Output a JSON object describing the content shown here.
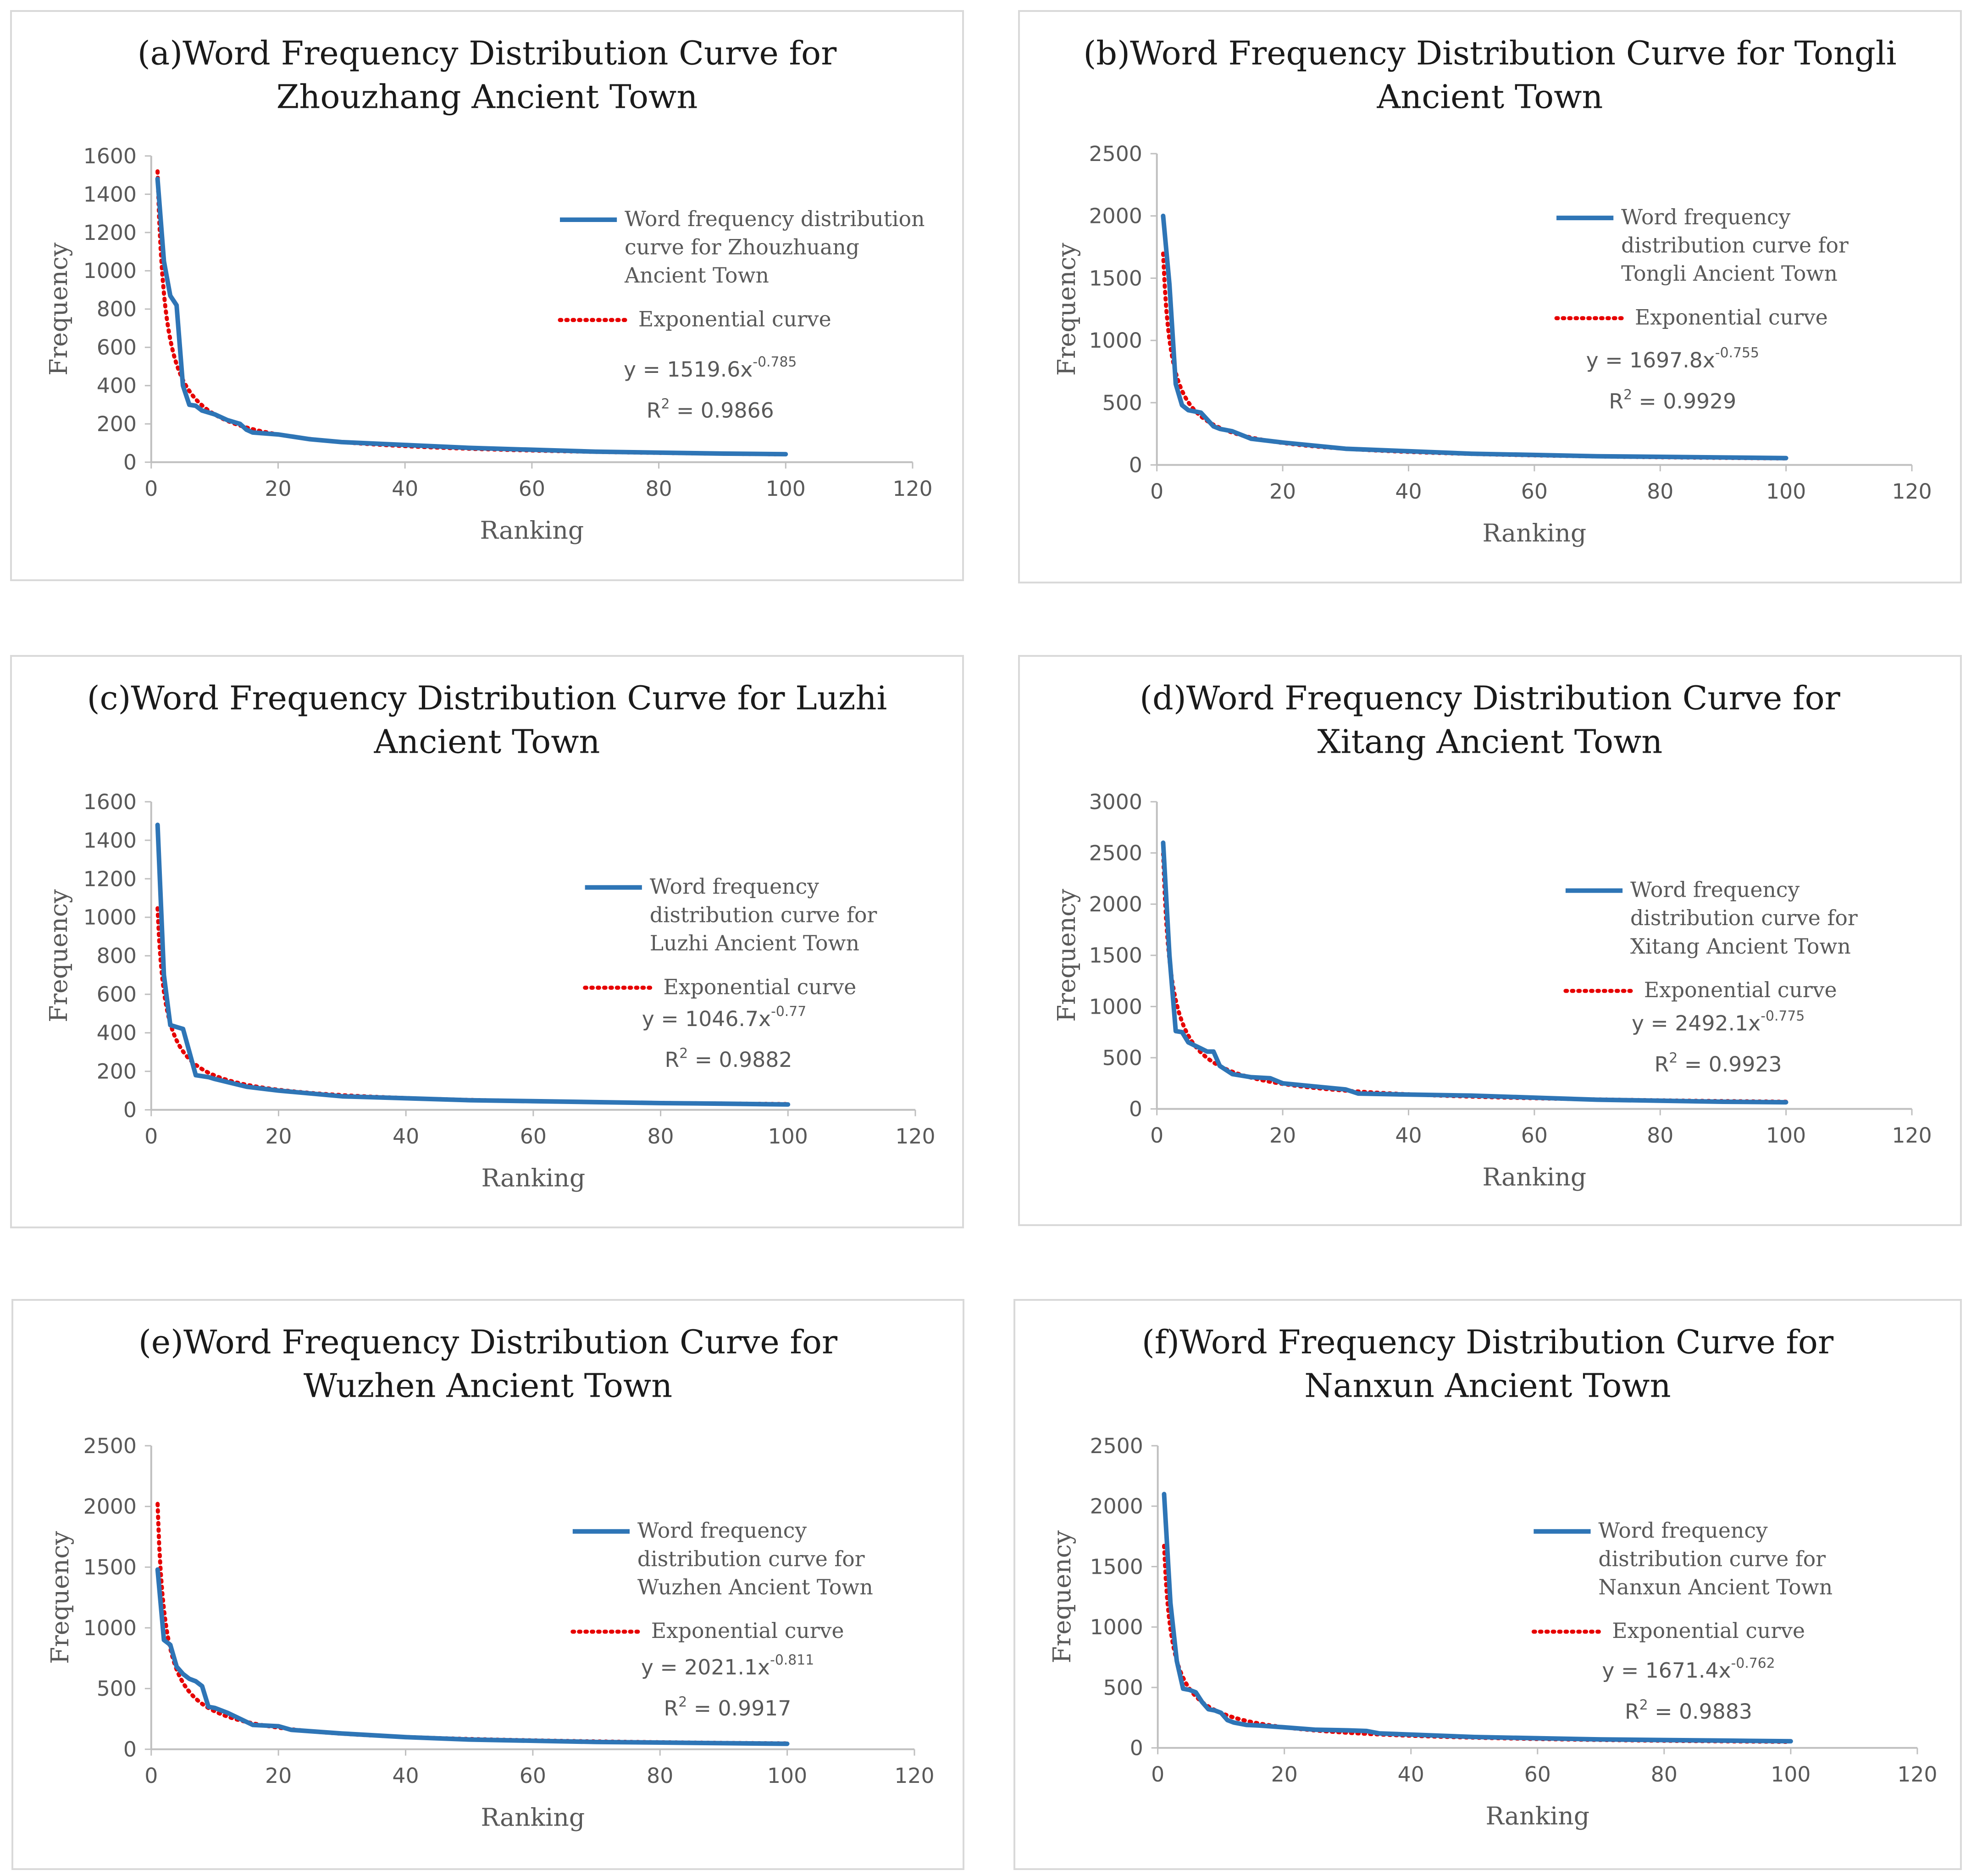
{
  "colors": {
    "series": "#2e75b6",
    "fit": "#e60000",
    "axis": "#bfbfbf",
    "border": "#d9d9d9"
  },
  "common": {
    "xlabel": "Ranking",
    "ylabel": "Frequency",
    "fit_legend": "Exponential curve",
    "xticks": [
      "0",
      "20",
      "40",
      "60",
      "80",
      "100",
      "120"
    ]
  },
  "chart_data": [
    {
      "type": "line",
      "title_lines": [
        "(a)Word Frequency Distribution Curve for",
        "Zhouzhang Ancient Town"
      ],
      "xlabel": "Ranking",
      "ylabel": "Frequency",
      "xlim": [
        0,
        120
      ],
      "ylim": [
        0,
        1600
      ],
      "yticks": [
        "0",
        "200",
        "400",
        "600",
        "800",
        "1000",
        "1200",
        "1400",
        "1600"
      ],
      "legend_lines": [
        "Word frequency distribution",
        "curve for Zhouzhuang",
        "Ancient Town"
      ],
      "series": [
        {
          "name": "Word frequency distribution curve for Zhouzhuang Ancient Town",
          "x": [
            1,
            2,
            3,
            4,
            5,
            6,
            7,
            8,
            9,
            10,
            12,
            14,
            15,
            16,
            18,
            20,
            25,
            30,
            40,
            50,
            60,
            70,
            80,
            90,
            100
          ],
          "y": [
            1480,
            1050,
            870,
            820,
            400,
            300,
            295,
            270,
            260,
            250,
            220,
            200,
            170,
            155,
            150,
            145,
            120,
            105,
            90,
            75,
            65,
            55,
            50,
            45,
            42
          ]
        }
      ],
      "fit": {
        "name": "Exponential curve",
        "a": 1519.6,
        "b": -0.785
      },
      "equation": {
        "main": "y = 1519.6x",
        "exponent": "-0.785",
        "r2_prefix": "R",
        "r2_sup": "2",
        "r2_value": " = 0.9866"
      }
    },
    {
      "type": "line",
      "title_lines": [
        "(b)Word Frequency Distribution Curve for Tongli",
        "Ancient Town"
      ],
      "xlabel": "Ranking",
      "ylabel": "Frequency",
      "xlim": [
        0,
        120
      ],
      "ylim": [
        0,
        2500
      ],
      "yticks": [
        "0",
        "500",
        "1000",
        "1500",
        "2000",
        "2500"
      ],
      "legend_lines": [
        "Word frequency",
        "distribution curve for",
        "Tongli Ancient Town"
      ],
      "series": [
        {
          "name": "Word frequency distribution curve for Tongli Ancient Town",
          "x": [
            1,
            2,
            3,
            4,
            5,
            7,
            9,
            10,
            12,
            15,
            20,
            30,
            40,
            50,
            60,
            70,
            80,
            90,
            100
          ],
          "y": [
            2000,
            1450,
            650,
            480,
            440,
            420,
            310,
            290,
            270,
            210,
            180,
            130,
            110,
            90,
            80,
            70,
            65,
            60,
            55
          ]
        }
      ],
      "fit": {
        "name": "Exponential curve",
        "a": 1697.8,
        "b": -0.755
      },
      "equation": {
        "main": "y = 1697.8x",
        "exponent": "-0.755",
        "r2_prefix": "R",
        "r2_sup": "2",
        "r2_value": " = 0.9929"
      }
    },
    {
      "type": "line",
      "title_lines": [
        "(c)Word Frequency Distribution Curve for Luzhi",
        "Ancient Town"
      ],
      "xlabel": "Ranking",
      "ylabel": "Frequency",
      "xlim": [
        0,
        120
      ],
      "ylim": [
        0,
        1600
      ],
      "yticks": [
        "0",
        "200",
        "400",
        "600",
        "800",
        "1000",
        "1200",
        "1400",
        "1600"
      ],
      "legend_lines": [
        "Word frequency",
        "distribution curve for",
        "Luzhi Ancient Town"
      ],
      "series": [
        {
          "name": "Word frequency distribution curve for Luzhi Ancient Town",
          "x": [
            1,
            2,
            3,
            4,
            5,
            6,
            7,
            8,
            9,
            10,
            15,
            20,
            30,
            40,
            50,
            60,
            70,
            80,
            90,
            100
          ],
          "y": [
            1480,
            700,
            440,
            430,
            420,
            300,
            180,
            175,
            170,
            160,
            120,
            100,
            70,
            60,
            50,
            45,
            40,
            35,
            32,
            28
          ]
        }
      ],
      "fit": {
        "name": "Exponential curve",
        "a": 1046.7,
        "b": -0.77
      },
      "equation": {
        "main": "y = 1046.7x",
        "exponent": "-0.77",
        "r2_prefix": "R",
        "r2_sup": "2",
        "r2_value": " = 0.9882"
      }
    },
    {
      "type": "line",
      "title_lines": [
        "(d)Word Frequency Distribution Curve for",
        "Xitang Ancient Town"
      ],
      "xlabel": "Ranking",
      "ylabel": "Frequency",
      "xlim": [
        0,
        120
      ],
      "ylim": [
        0,
        3000
      ],
      "yticks": [
        "0",
        "500",
        "1000",
        "1500",
        "2000",
        "2500",
        "3000"
      ],
      "legend_lines": [
        "Word frequency",
        "distribution curve for",
        "Xitang Ancient Town"
      ],
      "series": [
        {
          "name": "Word frequency distribution curve for Xitang Ancient Town",
          "x": [
            1,
            2,
            3,
            4,
            5,
            6,
            7,
            8,
            9,
            10,
            12,
            15,
            18,
            20,
            25,
            30,
            32,
            40,
            50,
            60,
            70,
            80,
            90,
            100
          ],
          "y": [
            2600,
            1500,
            760,
            750,
            650,
            620,
            590,
            560,
            560,
            420,
            340,
            310,
            300,
            250,
            220,
            190,
            150,
            140,
            130,
            110,
            90,
            80,
            70,
            65
          ]
        }
      ],
      "fit": {
        "name": "Exponential curve",
        "a": 2492.1,
        "b": -0.775
      },
      "equation": {
        "main": "y = 2492.1x",
        "exponent": "-0.775",
        "r2_prefix": "R",
        "r2_sup": "2",
        "r2_value": " = 0.9923"
      }
    },
    {
      "type": "line",
      "title_lines": [
        "(e)Word Frequency Distribution Curve for",
        "Wuzhen Ancient Town"
      ],
      "xlabel": "Ranking",
      "ylabel": "Frequency",
      "xlim": [
        0,
        120
      ],
      "ylim": [
        0,
        2500
      ],
      "yticks": [
        "0",
        "500",
        "1000",
        "1500",
        "2000",
        "2500"
      ],
      "legend_lines": [
        "Word frequency",
        "distribution curve for",
        "Wuzhen Ancient Town"
      ],
      "series": [
        {
          "name": "Word frequency distribution curve for Wuzhen Ancient Town",
          "x": [
            1,
            2,
            3,
            4,
            5,
            6,
            7,
            8,
            9,
            10,
            12,
            14,
            16,
            20,
            22,
            30,
            40,
            50,
            60,
            70,
            80,
            90,
            100
          ],
          "y": [
            1480,
            900,
            860,
            680,
            620,
            580,
            560,
            520,
            350,
            340,
            300,
            250,
            200,
            190,
            160,
            130,
            100,
            80,
            70,
            60,
            55,
            50,
            45
          ]
        }
      ],
      "fit": {
        "name": "Exponential curve",
        "a": 2021.1,
        "b": -0.811
      },
      "equation": {
        "main": "y = 2021.1x",
        "exponent": "-0.811",
        "r2_prefix": "R",
        "r2_sup": "2",
        "r2_value": " = 0.9917"
      }
    },
    {
      "type": "line",
      "title_lines": [
        "(f)Word Frequency Distribution Curve for",
        "Nanxun Ancient Town"
      ],
      "xlabel": "Ranking",
      "ylabel": "Frequency",
      "xlim": [
        0,
        120
      ],
      "ylim": [
        0,
        2500
      ],
      "yticks": [
        "0",
        "500",
        "1000",
        "1500",
        "2000",
        "2500"
      ],
      "legend_lines": [
        "Word frequency",
        "distribution curve for",
        "Nanxun Ancient Town"
      ],
      "series": [
        {
          "name": "Word frequency distribution curve for Nanxun Ancient Town",
          "x": [
            1,
            2,
            3,
            4,
            5,
            6,
            7,
            8,
            9,
            10,
            11,
            12,
            14,
            16,
            20,
            25,
            30,
            33,
            35,
            40,
            50,
            60,
            70,
            80,
            90,
            100
          ],
          "y": [
            2100,
            1200,
            720,
            490,
            480,
            460,
            380,
            320,
            310,
            290,
            230,
            210,
            190,
            185,
            170,
            150,
            145,
            140,
            120,
            110,
            90,
            80,
            70,
            65,
            60,
            55
          ]
        }
      ],
      "fit": {
        "name": "Exponential curve",
        "a": 1671.4,
        "b": -0.762
      },
      "equation": {
        "main": "y = 1671.4x",
        "exponent": "-0.762",
        "r2_prefix": "R",
        "r2_sup": "2",
        "r2_value": " = 0.9883"
      }
    }
  ]
}
